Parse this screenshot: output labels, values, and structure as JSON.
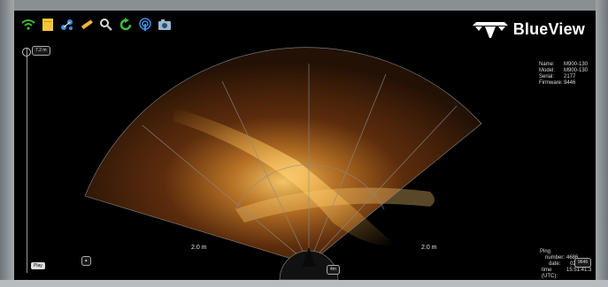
{
  "toolbar": {
    "tools": [
      "wifi-icon",
      "file-icon",
      "network-icon",
      "ruler-icon",
      "magnifier-icon",
      "refresh-icon",
      "sonar-ping-icon",
      "camera-icon"
    ]
  },
  "brand": {
    "name": "BlueView"
  },
  "device": {
    "name_label": "Name:",
    "name": "M900-130",
    "model_label": "Model:",
    "model": "M900-130",
    "serial_label": "Serial:",
    "serial": "2177",
    "firmware_label": "Firmware:",
    "firmware": "9446"
  },
  "range": {
    "top_scale": "7.2 m",
    "left_range": "2.0 m",
    "right_range": "2.0 m",
    "center_box": "4m"
  },
  "ping": {
    "title": "Ping",
    "number_label": "number:",
    "number": "4686",
    "date_label": "date:",
    "date": "02/26/",
    "time_label": "time (UTC):",
    "time": "15:51:41.3",
    "badge": "9646"
  },
  "playback": {
    "play_label": "Play"
  },
  "colors": {
    "sonar_hot": "#ffb23a",
    "sonar_mid": "#a8561a",
    "sonar_dark": "#2a1406",
    "grid": "#8a8a8a"
  }
}
